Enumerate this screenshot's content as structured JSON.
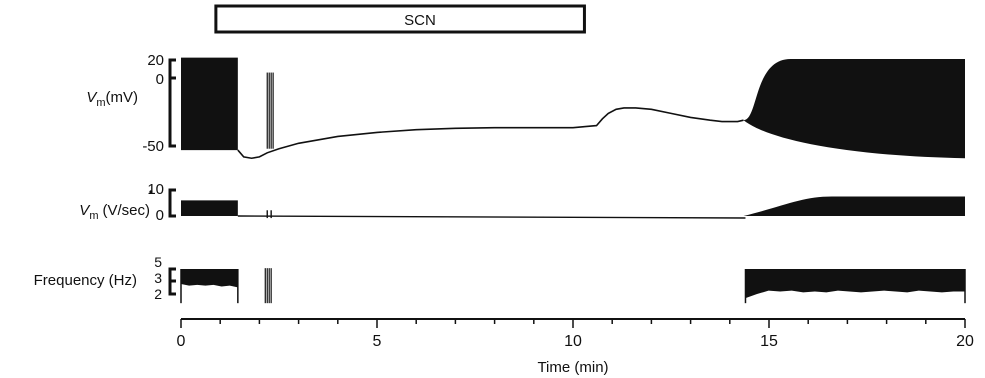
{
  "chart_data": {
    "type": "line",
    "bar_label": "SCN",
    "bar_interval_min": [
      1.4,
      10.7
    ],
    "xlabel": "Time (min)",
    "xlim": [
      0,
      20
    ],
    "xticks": [
      "0",
      "5",
      "10",
      "15",
      "20"
    ],
    "panels": [
      {
        "ylabel_main": "V",
        "ylabel_sub": "m",
        "ylabel_unit": "(mV)",
        "yticks": [
          "20",
          "0",
          "-50"
        ],
        "ylim": [
          -60,
          20
        ],
        "trace": {
          "x": [
            1.45,
            1.6,
            1.8,
            2.0,
            2.2,
            2.5,
            3.0,
            4.0,
            5.0,
            6.0,
            7.0,
            8.0,
            9.0,
            10.0,
            10.6,
            10.75,
            10.9,
            11.1,
            11.3,
            11.6,
            12.0,
            12.5,
            13.0,
            13.5,
            13.8,
            14.0,
            14.2,
            14.35
          ],
          "y": [
            -53,
            -58,
            -59,
            -58,
            -55,
            -52,
            -48,
            -43,
            -40,
            -38,
            -37,
            -36.5,
            -36.5,
            -36.5,
            -35,
            -30,
            -26,
            -23,
            -22,
            -22,
            -23,
            -26,
            -29,
            -31,
            -32,
            -32,
            -32,
            -31
          ]
        },
        "bursts": [
          {
            "x_start": 0,
            "x_end": 1.45,
            "top": 15,
            "bottom": -53
          },
          {
            "x_start": 14.35,
            "x_end": 20,
            "top_start": -31,
            "top_end": 14,
            "bottom_start": -31,
            "bottom_end": -59
          }
        ],
        "spikes_x": [
          2.2,
          2.25,
          2.3,
          2.35
        ]
      },
      {
        "ylabel_main": "V",
        "ylabel_sub": "m",
        "ylabel_unit": "(V/sec)",
        "yticks": [
          "10",
          "0"
        ],
        "ylim": [
          0,
          10
        ],
        "baseline": 0,
        "bursts": [
          {
            "x_start": 0,
            "x_end": 1.45,
            "top": 6,
            "bottom": 0
          },
          {
            "x_start": 14.35,
            "x_end": 20,
            "top_start": 0,
            "top_end": 7.5,
            "bottom_start": 0,
            "bottom_end": 0
          }
        ],
        "spikes_x": [
          2.2,
          2.3
        ]
      },
      {
        "ylabel_main": "Frequency (Hz)",
        "yticks": [
          "5",
          "3",
          "2"
        ],
        "ylim": [
          1,
          5.5
        ],
        "segments": [
          {
            "x_start": 0,
            "x_end": 1.45,
            "top": 5,
            "lower": [
              3.2,
              3.0,
              3.1,
              3.0,
              3.1,
              2.9,
              3.0,
              2.8
            ]
          },
          {
            "x_start": 14.4,
            "x_end": 20,
            "top": 5,
            "lower": [
              1.5,
              2.0,
              2.4,
              2.3,
              2.4,
              2.2,
              2.3,
              2.2,
              2.4,
              2.3,
              2.2,
              2.3,
              2.4,
              2.3,
              2.2,
              2.4,
              2.3,
              2.2,
              2.3,
              2.3
            ]
          }
        ],
        "spikes_x": [
          2.15,
          2.2,
          2.25,
          2.3
        ]
      }
    ]
  }
}
